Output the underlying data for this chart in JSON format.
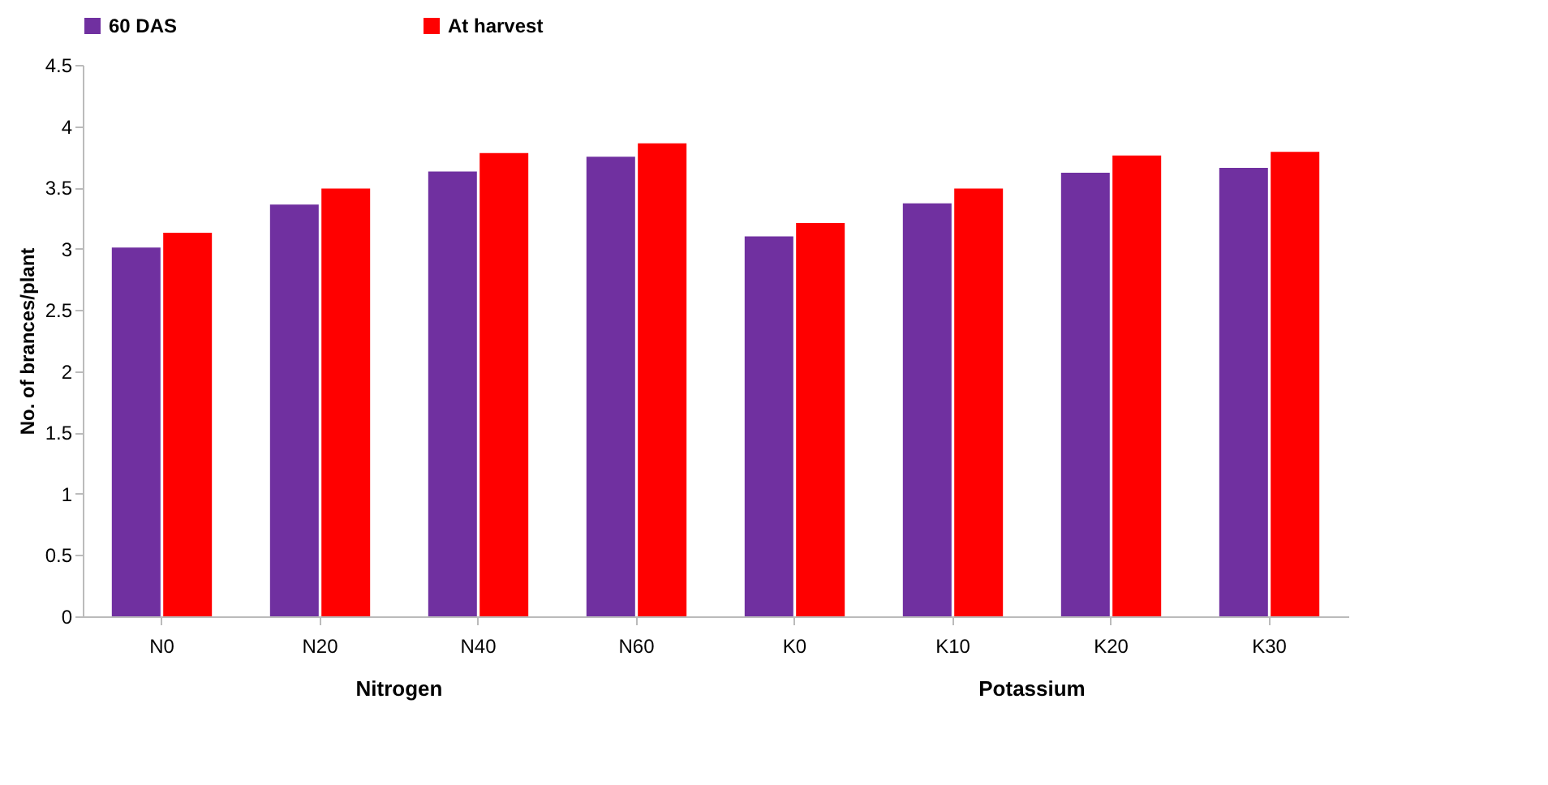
{
  "chart_data": {
    "type": "bar",
    "ylabel": "No. of brances/plant",
    "categories": [
      "N0",
      "N20",
      "N40",
      "N60",
      "K0",
      "K10",
      "K20",
      "K30"
    ],
    "series": [
      {
        "name": "60 DAS",
        "color": "#7030a0",
        "values": [
          3.01,
          3.36,
          3.63,
          3.75,
          3.1,
          3.37,
          3.62,
          3.66
        ]
      },
      {
        "name": "At harvest",
        "color": "#ff0000",
        "values": [
          3.13,
          3.49,
          3.78,
          3.86,
          3.21,
          3.49,
          3.76,
          3.79
        ]
      }
    ],
    "ylim": [
      0,
      4.5
    ],
    "yticks": [
      0,
      0.5,
      1,
      1.5,
      2,
      2.5,
      3,
      3.5,
      4,
      4.5
    ],
    "grid": false,
    "legend": "top",
    "annotations": [
      "Nitrogen",
      "Potassium"
    ]
  }
}
